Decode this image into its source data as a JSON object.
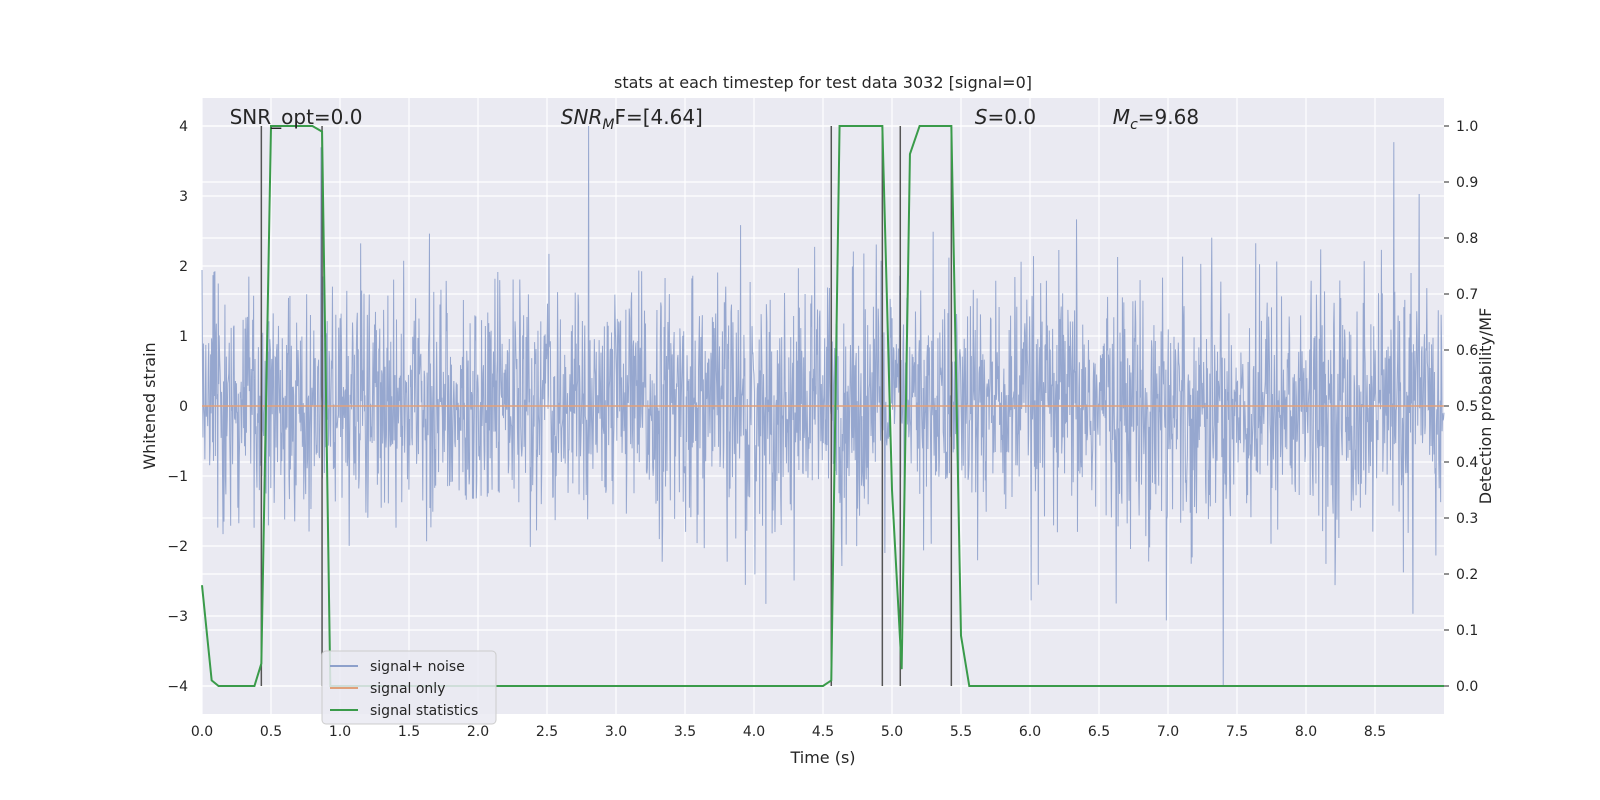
{
  "chart_data": {
    "type": "line",
    "title": "stats at each timestep for test data 3032 [signal=0]",
    "xlabel": "Time (s)",
    "ylabel": "Whitened strain",
    "ylabel_right": "Detection probability/MF",
    "xlim": [
      0.0,
      9.0
    ],
    "ylim": [
      -4.4,
      4.4
    ],
    "ylim_right": [
      -0.05,
      1.05
    ],
    "xticks": [
      0.0,
      0.5,
      1.0,
      1.5,
      2.0,
      2.5,
      3.0,
      3.5,
      4.0,
      4.5,
      5.0,
      5.5,
      6.0,
      6.5,
      7.0,
      7.5,
      8.0,
      8.5
    ],
    "xtick_labels": [
      "0.0",
      "0.5",
      "1.0",
      "1.5",
      "2.0",
      "2.5",
      "3.0",
      "3.5",
      "4.0",
      "4.5",
      "5.0",
      "5.5",
      "6.0",
      "6.5",
      "7.0",
      "7.5",
      "8.0",
      "8.5"
    ],
    "yticks": [
      4,
      3,
      2,
      1,
      0,
      -1,
      -2,
      -3,
      -4
    ],
    "ytick_labels": [
      "4",
      "3",
      "2",
      "1",
      "0",
      "−1",
      "−2",
      "−3",
      "−4"
    ],
    "yticks_right": [
      1.0,
      0.9,
      0.8,
      0.7,
      0.6,
      0.5,
      0.4,
      0.3,
      0.2,
      0.1,
      0.0
    ],
    "ytick_labels_right": [
      "1.0",
      "0.9",
      "0.8",
      "0.7",
      "0.6",
      "0.5",
      "0.4",
      "0.3",
      "0.2",
      "0.1",
      "0.0"
    ],
    "grid": true,
    "legend_position": "bottom-left",
    "annotations": [
      {
        "base": "SNR_opt=0.0",
        "sub": "",
        "rest": "",
        "x": 0.2
      },
      {
        "base": "SNR",
        "sub": "M",
        "rest": "F=[4.64]",
        "x": 2.6
      },
      {
        "base": "S",
        "sub": "",
        "rest": "=0.0",
        "x": 5.6
      },
      {
        "base": "M",
        "sub": "c",
        "rest": "=9.68",
        "x": 6.6
      }
    ],
    "series": [
      {
        "name": "signal+ noise",
        "color": "#8da0cb",
        "kind": "noise",
        "amplitude_typical": 1.5,
        "amplitude_max": 4.0
      },
      {
        "name": "signal only",
        "color": "#e0a07a",
        "kind": "constant",
        "value": 0
      },
      {
        "name": "signal statistics",
        "color": "#3a9b4a",
        "axis": "right",
        "x": [
          0.0,
          0.07,
          0.12,
          0.38,
          0.43,
          0.5,
          0.8,
          0.87,
          0.93,
          4.5,
          4.56,
          4.62,
          4.93,
          5.0,
          5.07,
          5.13,
          5.2,
          5.43,
          5.5,
          5.56,
          9.0
        ],
        "y": [
          0.18,
          0.01,
          0.0,
          0.0,
          0.04,
          1.0,
          1.0,
          0.99,
          0.0,
          0.0,
          0.01,
          1.0,
          1.0,
          0.35,
          0.03,
          0.95,
          1.0,
          1.0,
          0.09,
          0.0,
          0.0
        ]
      }
    ],
    "vertical_lines": {
      "color": "#555555",
      "x": [
        0.43,
        0.87,
        4.56,
        4.93,
        5.06,
        5.43
      ],
      "y_right_top": 1.0
    }
  }
}
